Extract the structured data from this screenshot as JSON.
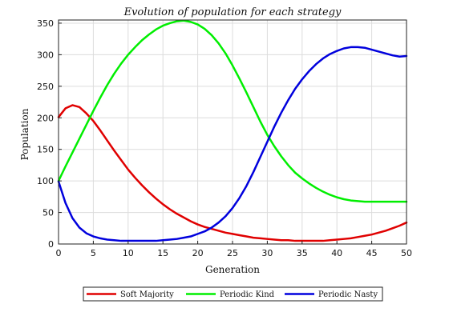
{
  "chart_data": {
    "type": "line",
    "title": "Evolution of population for each strategy",
    "xlabel": "Generation",
    "ylabel": "Population",
    "xlim": [
      0,
      50
    ],
    "ylim": [
      0,
      355
    ],
    "xticks": [
      0,
      5,
      10,
      15,
      20,
      25,
      30,
      35,
      40,
      45,
      50
    ],
    "yticks": [
      0,
      50,
      100,
      150,
      200,
      250,
      300,
      350
    ],
    "grid": true,
    "legend": "bottom-center",
    "x": [
      0,
      1,
      2,
      3,
      4,
      5,
      6,
      7,
      8,
      9,
      10,
      11,
      12,
      13,
      14,
      15,
      16,
      17,
      18,
      19,
      20,
      21,
      22,
      23,
      24,
      25,
      26,
      27,
      28,
      29,
      30,
      31,
      32,
      33,
      34,
      35,
      36,
      37,
      38,
      39,
      40,
      41,
      42,
      43,
      44,
      45,
      46,
      47,
      48,
      49,
      50
    ],
    "series": [
      {
        "name": "Soft Majority",
        "color": "#e00000",
        "values": [
          201,
          215,
          220,
          217,
          207,
          195,
          180,
          164,
          148,
          133,
          118,
          105,
          93,
          82,
          72,
          63,
          55,
          48,
          42,
          36,
          31,
          27,
          24,
          21,
          18,
          16,
          14,
          12,
          10,
          9,
          8,
          7,
          6,
          6,
          5,
          5,
          5,
          5,
          5,
          6,
          7,
          8,
          9,
          11,
          13,
          15,
          18,
          21,
          25,
          29,
          34
        ]
      },
      {
        "name": "Periodic Kind",
        "color": "#00ee00",
        "values": [
          100,
          123,
          145,
          167,
          189,
          211,
          232,
          252,
          270,
          286,
          300,
          312,
          323,
          332,
          340,
          346,
          350,
          353,
          354,
          352,
          348,
          341,
          331,
          318,
          302,
          283,
          262,
          240,
          217,
          194,
          173,
          155,
          139,
          125,
          113,
          104,
          96,
          89,
          83,
          78,
          74,
          71,
          69,
          68,
          67,
          67,
          67,
          67,
          67,
          67,
          67
        ]
      },
      {
        "name": "Periodic Nasty",
        "color": "#0000dd",
        "values": [
          99,
          65,
          41,
          26,
          17,
          12,
          9,
          7,
          6,
          5,
          5,
          5,
          5,
          5,
          5,
          6,
          7,
          8,
          10,
          12,
          16,
          20,
          26,
          34,
          44,
          57,
          73,
          92,
          114,
          138,
          162,
          186,
          208,
          228,
          246,
          261,
          274,
          285,
          294,
          301,
          306,
          310,
          312,
          312,
          311,
          308,
          305,
          302,
          299,
          297,
          298
        ]
      }
    ]
  }
}
